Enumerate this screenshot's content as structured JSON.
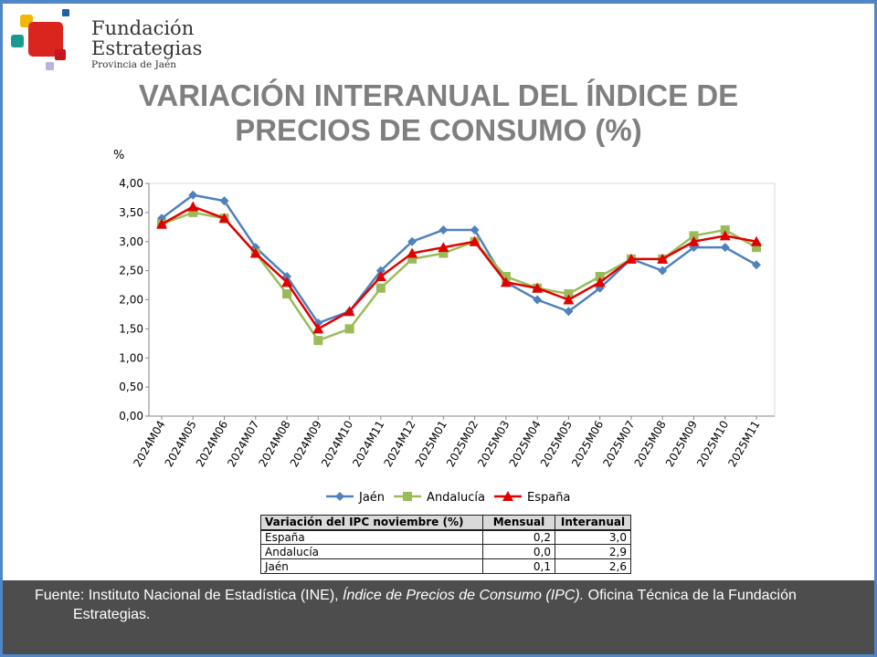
{
  "logo": {
    "line1": "Fundación",
    "line2": "Estrategias",
    "line3": "Provincia de Jaén"
  },
  "title": {
    "line1": "VARIACIÓN INTERANUAL DEL ÍNDICE DE",
    "line2": "PRECIOS DE CONSUMO (%)"
  },
  "chart_data": {
    "type": "line",
    "ylabel": "%",
    "ylim": [
      0,
      4
    ],
    "yticks": [
      "0,00",
      "0,50",
      "1,00",
      "1,50",
      "2,00",
      "2,50",
      "3,00",
      "3,50",
      "4,00"
    ],
    "grid": false,
    "legend": "bottom",
    "categories": [
      "2024M04",
      "2024M05",
      "2024M06",
      "2024M07",
      "2024M08",
      "2024M09",
      "2024M10",
      "2024M11",
      "2024M12",
      "2025M01",
      "2025M02",
      "2025M03",
      "2025M04",
      "2025M05",
      "2025M06",
      "2025M07",
      "2025M08",
      "2025M09",
      "2025M10",
      "2025M11"
    ],
    "series": [
      {
        "name": "Jaén",
        "color": "#4f81bd",
        "marker": "diamond",
        "values": [
          3.4,
          3.8,
          3.7,
          2.9,
          2.4,
          1.6,
          1.8,
          2.5,
          3.0,
          3.2,
          3.2,
          2.3,
          2.0,
          1.8,
          2.2,
          2.7,
          2.5,
          2.9,
          2.9,
          2.6
        ]
      },
      {
        "name": "Andalucía",
        "color": "#9bbb59",
        "marker": "square",
        "values": [
          3.3,
          3.5,
          3.4,
          2.8,
          2.1,
          1.3,
          1.5,
          2.2,
          2.7,
          2.8,
          3.0,
          2.4,
          2.2,
          2.1,
          2.4,
          2.7,
          2.7,
          3.1,
          3.2,
          2.9
        ]
      },
      {
        "name": "España",
        "color": "#e00000",
        "marker": "triangle",
        "values": [
          3.3,
          3.6,
          3.4,
          2.8,
          2.3,
          1.5,
          1.8,
          2.4,
          2.8,
          2.9,
          3.0,
          2.3,
          2.2,
          2.0,
          2.3,
          2.7,
          2.7,
          3.0,
          3.1,
          3.0
        ]
      }
    ]
  },
  "table": {
    "headers": [
      "Variación del IPC noviembre (%)",
      "Mensual",
      "Interanual"
    ],
    "rows": [
      [
        "España",
        "0,2",
        "3,0"
      ],
      [
        "Andalucía",
        "0,0",
        "2,9"
      ],
      [
        "Jaén",
        "0,1",
        "2,6"
      ]
    ]
  },
  "footer": {
    "pre": "Fuente: Instituto Nacional de Estadística (INE), ",
    "italic": "Índice de Precios de Consumo (IPC).",
    "post": " Oficina Técnica de la Fundación",
    "line2": "Estrategias."
  }
}
